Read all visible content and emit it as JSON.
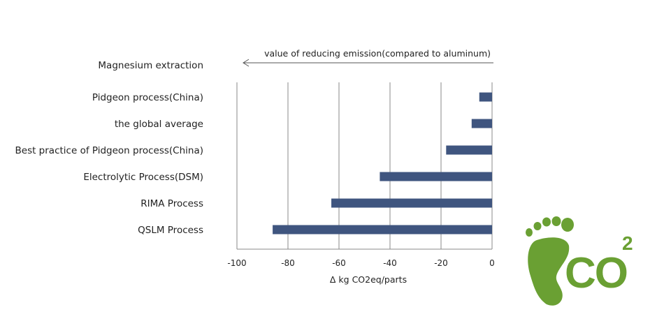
{
  "chart_data": {
    "type": "bar",
    "orientation": "horizontal",
    "group_title": "Magnesium extraction",
    "annotation": "value of reducing emission(compared to aluminum)",
    "categories": [
      "Pidgeon process(China)",
      "the global average",
      "Best practice of Pidgeon process(China)",
      "Electrolytic Process(DSM)",
      "RIMA Process",
      "QSLM Process"
    ],
    "values": [
      -5,
      -8,
      -18,
      -44,
      -63,
      -86
    ],
    "xlim": [
      -100,
      0
    ],
    "xticks": [
      -100,
      -80,
      -60,
      -40,
      -20,
      0
    ],
    "xlabel": "Δ  kg CO2eq/parts",
    "grid": "vertical",
    "bar_color": "#3f557f"
  },
  "logo": {
    "text": "CO",
    "superscript": "2",
    "color": "#6aa033"
  }
}
